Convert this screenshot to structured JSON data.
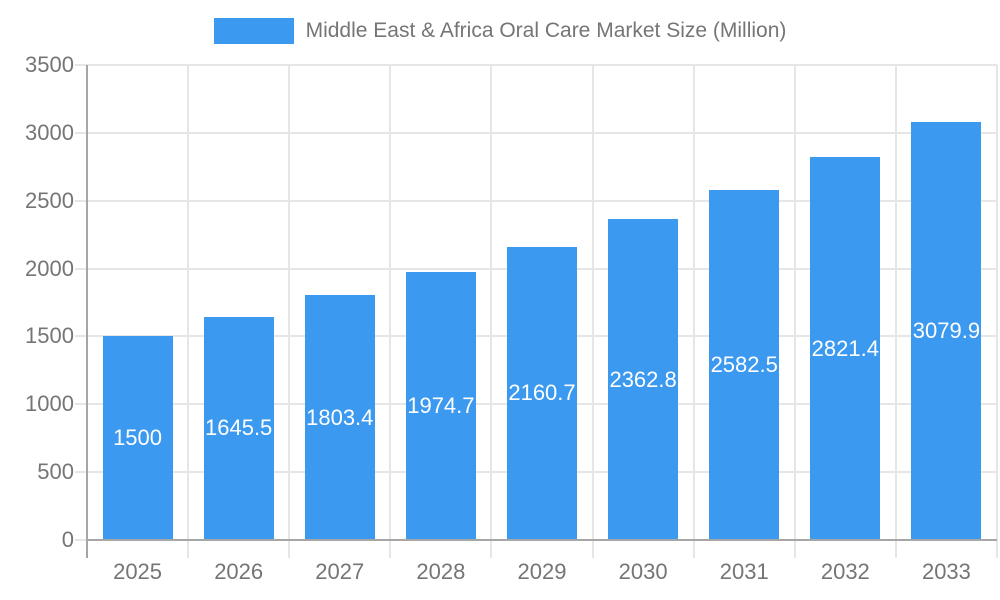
{
  "chart_data": {
    "type": "bar",
    "title": "Middle East & Africa Oral Care Market Size (Million)",
    "categories": [
      "2025",
      "2026",
      "2027",
      "2028",
      "2029",
      "2030",
      "2031",
      "2032",
      "2033"
    ],
    "values": [
      1500,
      1645.5,
      1803.4,
      1974.7,
      2160.7,
      2362.8,
      2582.5,
      2821.4,
      3079.9
    ],
    "value_labels": [
      "1500",
      "1645.5",
      "1803.4",
      "1974.7",
      "2160.7",
      "2362.8",
      "2582.5",
      "2821.4",
      "3079.9"
    ],
    "xlabel": "",
    "ylabel": "",
    "ylim": [
      0,
      3500
    ],
    "y_ticks": [
      0,
      500,
      1000,
      1500,
      2000,
      2500,
      3000,
      3500
    ],
    "grid": true,
    "legend_position": "top",
    "colors": {
      "bar": "#3b99f0",
      "grid": "#e6e6e6",
      "axis": "#a6a6a6",
      "axis_text": "#757575",
      "bar_label_text": "#ffffff",
      "background": "#ffffff"
    }
  }
}
